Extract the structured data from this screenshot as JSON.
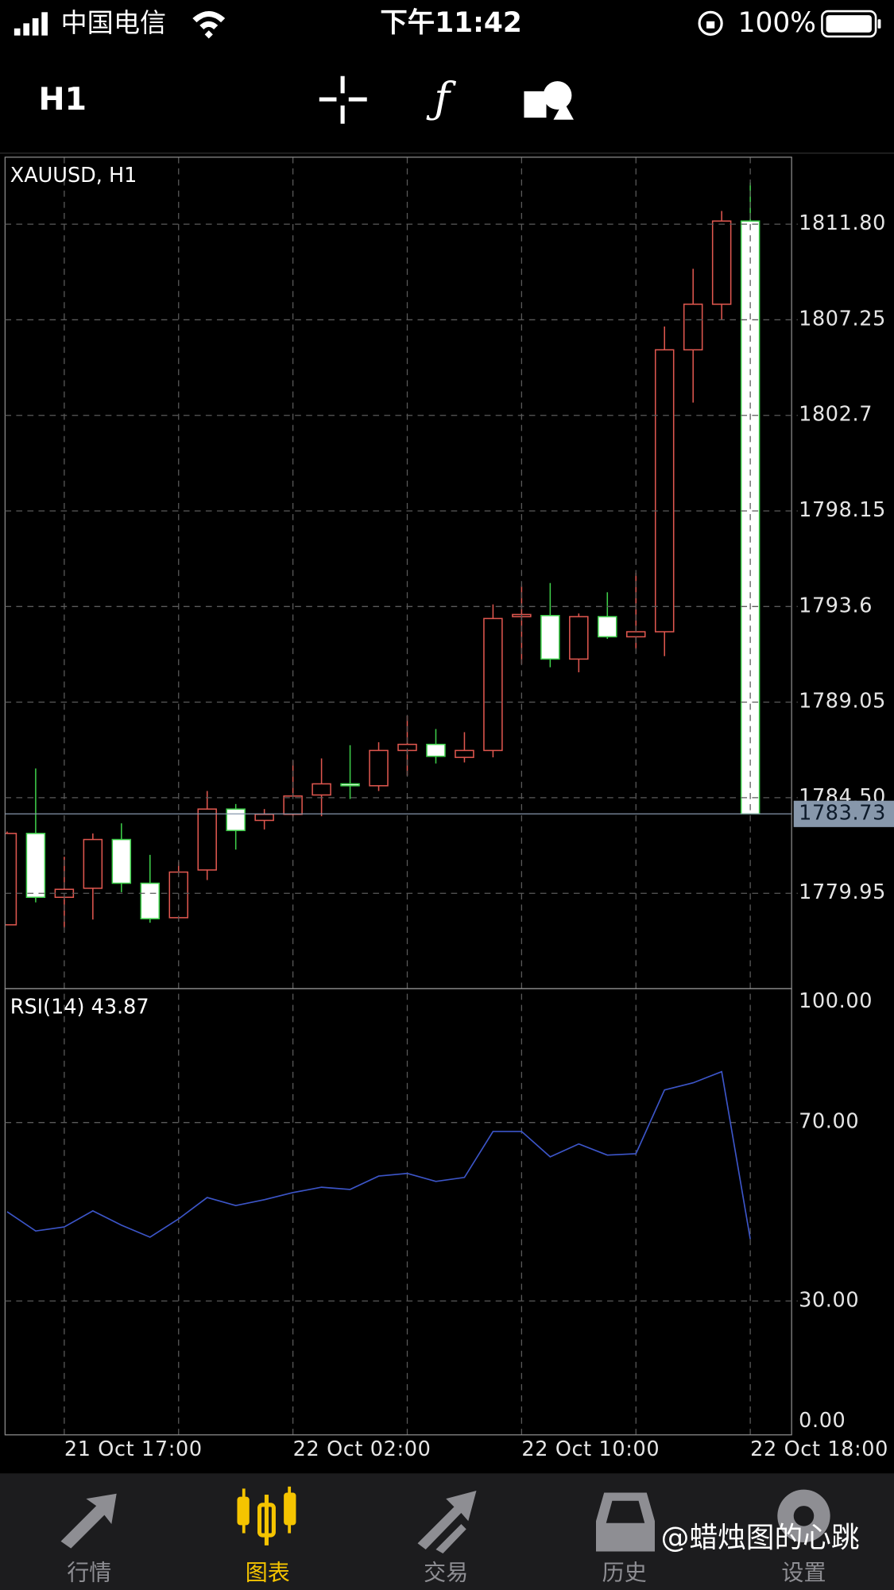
{
  "status_bar": {
    "carrier": "中国电信",
    "time": "下午11:42",
    "battery": "100%"
  },
  "toolbar": {
    "timeframe": "H1"
  },
  "chart_data": [
    {
      "type": "candlestick",
      "title": "XAUUSD, H1",
      "categories": [
        null,
        null,
        "21 Oct 17:00",
        null,
        null,
        null,
        null,
        null,
        null,
        null,
        "22 Oct 02:00",
        null,
        null,
        null,
        null,
        null,
        null,
        null,
        "22 Oct 10:00",
        null,
        null,
        null,
        null,
        null,
        null,
        null,
        "22 Oct 18:00"
      ],
      "open": [
        1778.45,
        1782.8,
        1779.76,
        1780.19,
        1782.51,
        1780.43,
        1778.79,
        1781.06,
        1783.96,
        1783.42,
        1783.71,
        1784.63,
        1785.16,
        1785.07,
        1786.75,
        1787.04,
        1786.42,
        1786.75,
        1793.12,
        1793.17,
        1791.1,
        1793.12,
        1792.16,
        1792.4,
        1805.82,
        1807.99,
        1811.95
      ],
      "high": [
        1782.89,
        1785.89,
        1781.69,
        1782.8,
        1783.28,
        1781.78,
        1781.45,
        1784.82,
        1784.2,
        1783.96,
        1786.27,
        1786.37,
        1787.0,
        1787.14,
        1788.4,
        1787.77,
        1787.62,
        1793.7,
        1794.57,
        1794.72,
        1793.27,
        1794.28,
        1795.2,
        1806.93,
        1809.68,
        1812.43,
        1813.78
      ],
      "low": [
        1778.45,
        1779.52,
        1778.31,
        1778.7,
        1780.0,
        1778.55,
        1778.79,
        1780.58,
        1782.03,
        1782.99,
        1783.57,
        1783.62,
        1784.44,
        1784.82,
        1785.55,
        1786.13,
        1786.18,
        1786.42,
        1790.86,
        1790.71,
        1790.47,
        1792.06,
        1791.58,
        1791.24,
        1803.31,
        1807.26,
        1783.73
      ],
      "close": [
        1782.8,
        1779.76,
        1780.14,
        1782.51,
        1780.43,
        1778.74,
        1780.96,
        1783.96,
        1782.94,
        1783.71,
        1784.58,
        1785.16,
        1785.07,
        1786.75,
        1787.04,
        1786.47,
        1786.75,
        1793.03,
        1793.22,
        1791.1,
        1793.12,
        1792.16,
        1792.4,
        1805.82,
        1807.99,
        1811.95,
        1783.73
      ],
      "up_color": "#e0574f",
      "down_color": "#3ecf4a",
      "ylim": [
        1775.41,
        1814.99
      ],
      "yticks": [
        1779.95,
        {
          "value": 1784.5,
          "label": "1784.50"
        },
        1789.05,
        1793.6,
        1798.15,
        1802.7,
        1807.25,
        {
          "value": 1811.8,
          "label": "1811.80"
        }
      ],
      "grid": true,
      "current_price": 1783.73
    },
    {
      "type": "line",
      "title": "RSI(14) 43.87",
      "color": "#3c55c8",
      "values": [
        50.0,
        45.7,
        46.6,
        50.2,
        47.0,
        44.3,
        48.4,
        53.2,
        51.4,
        52.7,
        54.3,
        55.5,
        55.0,
        58.0,
        58.6,
        56.8,
        57.7,
        68.0,
        68.0,
        62.3,
        65.2,
        62.7,
        63.0,
        77.3,
        78.9,
        81.4,
        43.87
      ],
      "ylim": [
        0,
        100
      ],
      "yticks": [
        {
          "value": 0,
          "label": "0.00"
        },
        {
          "value": 30,
          "label": "30.00"
        },
        {
          "value": 70,
          "label": "70.00"
        },
        {
          "value": 100,
          "label": "100.00"
        }
      ],
      "grid": true
    }
  ],
  "nav": {
    "items": [
      "行情",
      "图表",
      "交易",
      "历史",
      "设置"
    ],
    "active": 1
  },
  "watermark": "@蜡烛图的心跳"
}
